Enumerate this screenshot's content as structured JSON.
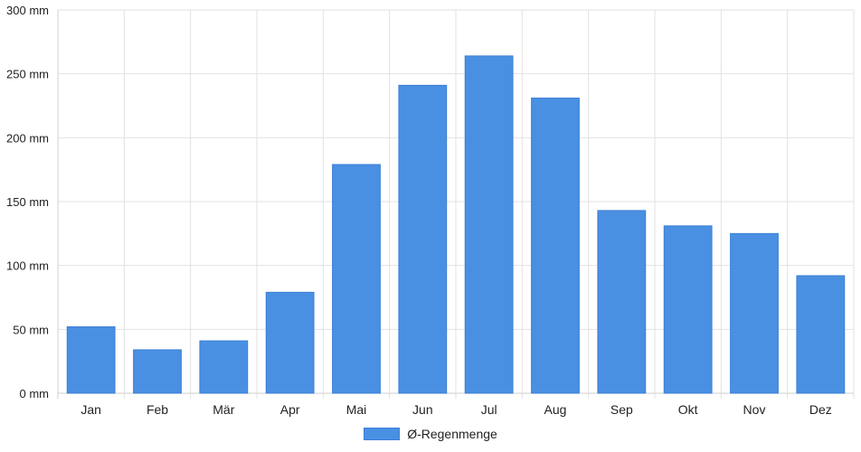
{
  "chart_data": {
    "type": "bar",
    "categories": [
      "Jan",
      "Feb",
      "Mär",
      "Apr",
      "Mai",
      "Jun",
      "Jul",
      "Aug",
      "Sep",
      "Okt",
      "Nov",
      "Dez"
    ],
    "series": [
      {
        "name": "Ø-Regenmenge",
        "values": [
          52,
          34,
          41,
          79,
          179,
          241,
          264,
          231,
          143,
          131,
          125,
          92
        ],
        "color": "#4a90e2"
      }
    ],
    "ylim": [
      0,
      300
    ],
    "yticks": [
      0,
      50,
      100,
      150,
      200,
      250,
      300
    ],
    "ytick_labels": [
      "0 mm",
      "50 mm",
      "100 mm",
      "150 mm",
      "200 mm",
      "250 mm",
      "300 mm"
    ],
    "grid": true,
    "legend_position": "bottom"
  },
  "legend": {
    "label": "Ø-Regenmenge"
  }
}
